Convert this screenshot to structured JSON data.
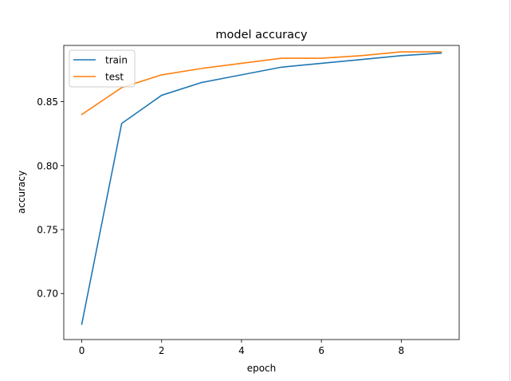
{
  "chart_data": {
    "type": "line",
    "title": "model accuracy",
    "xlabel": "epoch",
    "ylabel": "accuracy",
    "x": [
      0,
      1,
      2,
      3,
      4,
      5,
      6,
      7,
      8,
      9
    ],
    "xlim": [
      -0.45,
      9.45
    ],
    "ylim": [
      0.664,
      0.894
    ],
    "xticks": [
      0,
      2,
      4,
      6,
      8
    ],
    "yticks": [
      0.7,
      0.75,
      0.8,
      0.85
    ],
    "ytick_labels": [
      "0.70",
      "0.75",
      "0.80",
      "0.85"
    ],
    "grid": false,
    "legend_position": "upper-left",
    "series": [
      {
        "name": "train",
        "color": "#1f77b4",
        "values": [
          0.676,
          0.833,
          0.855,
          0.865,
          0.871,
          0.877,
          0.88,
          0.883,
          0.886,
          0.888
        ]
      },
      {
        "name": "test",
        "color": "#ff7f0e",
        "values": [
          0.84,
          0.861,
          0.871,
          0.876,
          0.88,
          0.884,
          0.884,
          0.886,
          0.889,
          0.889
        ]
      }
    ]
  }
}
